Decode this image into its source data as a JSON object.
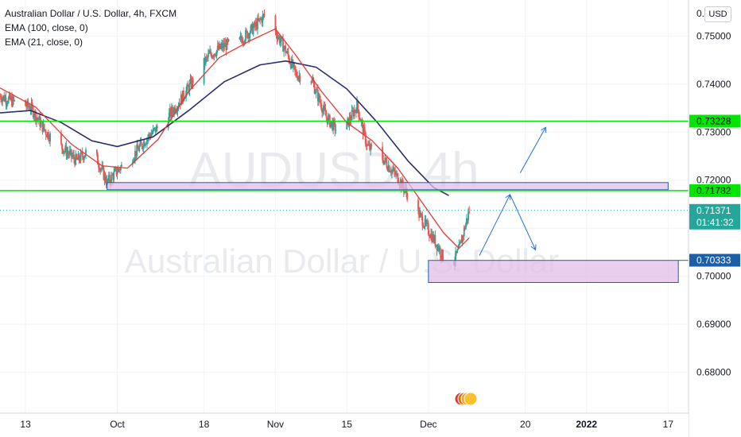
{
  "symbol_title": "Australian Dollar / U.S. Dollar, 4h, FXCM",
  "indicators": [
    "EMA (100, close, 0)",
    "EMA (21, close, 0)"
  ],
  "watermark": {
    "ticker": "AUDUSD, 4h",
    "name": "Australian Dollar / U.S. Dollar"
  },
  "currency_button": "USD",
  "top_price_label": "0.",
  "colors": {
    "up": "#26a69a",
    "down": "#ef5350",
    "ema21": "#e53935",
    "ema100": "#2a2e70",
    "hline": "#00e600",
    "zone_fill": "#e1bee7",
    "zone_stroke": "#1c5fa8",
    "arrow": "#1e6fd9",
    "last_price": "#26a69a",
    "grid": "#f0f3fa",
    "axis_text": "#131722"
  },
  "chart_data": {
    "type": "candlestick",
    "title": "Australian Dollar / U.S. Dollar, 4h, FXCM",
    "ylim": [
      0.6715,
      0.7575
    ],
    "y_ticks": [
      0.68,
      0.69,
      0.7,
      0.71,
      0.72,
      0.73,
      0.74,
      0.75
    ],
    "y_tick_labels": [
      "0.68000",
      "0.69000",
      "0.70000",
      "",
      "0.72000",
      "0.73000",
      "0.74000",
      "0.75000"
    ],
    "x_ticks": [
      {
        "label": "13",
        "date": "2021-09-13"
      },
      {
        "label": "Oct",
        "date": "2021-10-01"
      },
      {
        "label": "18",
        "date": "2021-10-18"
      },
      {
        "label": "Nov",
        "date": "2021-11-01"
      },
      {
        "label": "15",
        "date": "2021-11-15"
      },
      {
        "label": "Dec",
        "date": "2021-12-01"
      },
      {
        "label": "20",
        "date": "2021-12-20"
      },
      {
        "label": "2022",
        "date": "2022-01-01"
      },
      {
        "label": "17",
        "date": "2022-01-17"
      }
    ],
    "x_domain": [
      "2021-09-08",
      "2022-01-21"
    ],
    "close_path": [
      [
        "2021-09-08",
        0.7375
      ],
      [
        "2021-09-11",
        0.7362
      ],
      [
        "2021-09-14",
        0.7352
      ],
      [
        "2021-09-17",
        0.73
      ],
      [
        "2021-09-20",
        0.727
      ],
      [
        "2021-09-23",
        0.724
      ],
      [
        "2021-09-26",
        0.7268
      ],
      [
        "2021-09-29",
        0.7195
      ],
      [
        "2021-10-01",
        0.722
      ],
      [
        "2021-10-04",
        0.725
      ],
      [
        "2021-10-07",
        0.729
      ],
      [
        "2021-10-10",
        0.732
      ],
      [
        "2021-10-13",
        0.736
      ],
      [
        "2021-10-16",
        0.741
      ],
      [
        "2021-10-19",
        0.746
      ],
      [
        "2021-10-22",
        0.748
      ],
      [
        "2021-10-25",
        0.749
      ],
      [
        "2021-10-28",
        0.752
      ],
      [
        "2021-10-30",
        0.7545
      ],
      [
        "2021-11-01",
        0.751
      ],
      [
        "2021-11-03",
        0.747
      ],
      [
        "2021-11-05",
        0.742
      ],
      [
        "2021-11-08",
        0.741
      ],
      [
        "2021-11-11",
        0.733
      ],
      [
        "2021-11-13",
        0.7305
      ],
      [
        "2021-11-15",
        0.7315
      ],
      [
        "2021-11-17",
        0.7355
      ],
      [
        "2021-11-19",
        0.727
      ],
      [
        "2021-11-22",
        0.7245
      ],
      [
        "2021-11-25",
        0.7205
      ],
      [
        "2021-11-28",
        0.715
      ],
      [
        "2021-12-01",
        0.7095
      ],
      [
        "2021-12-03",
        0.706
      ],
      [
        "2021-12-05",
        0.701
      ],
      [
        "2021-12-07",
        0.7055
      ],
      [
        "2021-12-09",
        0.7137
      ]
    ],
    "ema_21": [
      [
        "2021-09-08",
        0.7392
      ],
      [
        "2021-09-15",
        0.7352
      ],
      [
        "2021-09-22",
        0.7275
      ],
      [
        "2021-09-28",
        0.723
      ],
      [
        "2021-10-03",
        0.7225
      ],
      [
        "2021-10-09",
        0.7285
      ],
      [
        "2021-10-15",
        0.7385
      ],
      [
        "2021-10-21",
        0.7455
      ],
      [
        "2021-10-27",
        0.749
      ],
      [
        "2021-11-01",
        0.7515
      ],
      [
        "2021-11-05",
        0.746
      ],
      [
        "2021-11-10",
        0.7385
      ],
      [
        "2021-11-15",
        0.732
      ],
      [
        "2021-11-20",
        0.7282
      ],
      [
        "2021-11-25",
        0.7225
      ],
      [
        "2021-11-30",
        0.715
      ],
      [
        "2021-12-04",
        0.709
      ],
      [
        "2021-12-07",
        0.7058
      ],
      [
        "2021-12-09",
        0.708
      ]
    ],
    "ema_100": [
      [
        "2021-09-08",
        0.734
      ],
      [
        "2021-09-14",
        0.7345
      ],
      [
        "2021-09-20",
        0.732
      ],
      [
        "2021-09-26",
        0.7282
      ],
      [
        "2021-10-01",
        0.727
      ],
      [
        "2021-10-08",
        0.729
      ],
      [
        "2021-10-15",
        0.7345
      ],
      [
        "2021-10-22",
        0.7405
      ],
      [
        "2021-10-29",
        0.744
      ],
      [
        "2021-11-03",
        0.7448
      ],
      [
        "2021-11-09",
        0.7435
      ],
      [
        "2021-11-15",
        0.739
      ],
      [
        "2021-11-21",
        0.732
      ],
      [
        "2021-11-27",
        0.724
      ],
      [
        "2021-12-02",
        0.7185
      ],
      [
        "2021-12-05",
        0.7168
      ]
    ],
    "horizontal_lines": [
      {
        "price": 0.73228,
        "label": "0.73228"
      },
      {
        "price": 0.71782,
        "label": "0.71782"
      }
    ],
    "zones": [
      {
        "start": "2021-09-29",
        "end": "2022-01-17",
        "low": 0.718,
        "high": 0.7195
      },
      {
        "start": "2021-12-01",
        "end": "2022-01-19",
        "low": 0.6987,
        "high": 0.7033,
        "label": "0.70333"
      }
    ],
    "projection_arrows": [
      [
        [
          "2021-12-11",
          0.7043
        ],
        [
          "2021-12-17",
          0.717
        ]
      ],
      [
        [
          "2021-12-17",
          0.717
        ],
        [
          "2021-12-22",
          0.7055
        ]
      ],
      [
        [
          "2021-12-19",
          0.7215
        ],
        [
          "2021-12-24",
          0.731
        ]
      ]
    ],
    "last_price": {
      "value": 0.71371,
      "label": "0.71371",
      "countdown": "01:41:32"
    }
  }
}
